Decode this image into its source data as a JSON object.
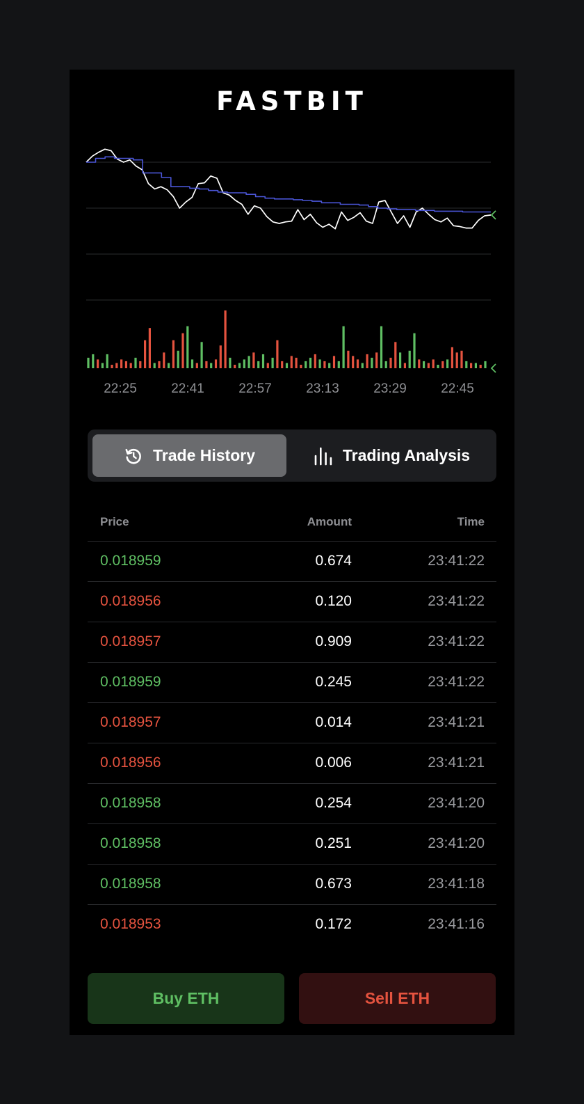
{
  "header": {
    "brand": "FASTBIT"
  },
  "chart_data": {
    "type": "line",
    "x_tick_labels": [
      "22:25",
      "22:41",
      "22:57",
      "23:13",
      "23:29",
      "22:45"
    ],
    "series": [
      {
        "values": [
          0.0191,
          0.01918,
          0.01923,
          0.01927,
          0.01925,
          0.01914,
          0.0191,
          0.01913,
          0.01905,
          0.019,
          0.01882,
          0.01875,
          0.01878,
          0.01874,
          0.01865,
          0.0185,
          0.01858,
          0.01864,
          0.01882,
          0.01883,
          0.01892,
          0.01889,
          0.0187,
          0.01867,
          0.0186,
          0.01855,
          0.01842,
          0.01853,
          0.0185,
          0.01839,
          0.01832,
          0.0183,
          0.01832,
          0.01833,
          0.01848,
          0.01835,
          0.01842,
          0.01831,
          0.01825,
          0.01829,
          0.01823,
          0.01845,
          0.01834,
          0.01838,
          0.01844,
          0.01833,
          0.0183,
          0.01858,
          0.0186,
          0.01845,
          0.0183,
          0.0184,
          0.01825,
          0.01845,
          0.0185,
          0.01842,
          0.01835,
          0.01832,
          0.01837,
          0.01827,
          0.01826,
          0.01824,
          0.01824,
          0.01834,
          0.0184,
          0.01841
        ]
      },
      {
        "values": [
          0.0191,
          0.01915,
          0.01917,
          0.01915,
          0.01915,
          0.01913,
          0.01896,
          0.01896,
          0.0189,
          0.01878,
          0.01878,
          0.01876,
          0.01875,
          0.01873,
          0.01871,
          0.0187,
          0.0187,
          0.01868,
          0.01865,
          0.01863,
          0.01862,
          0.01862,
          0.01861,
          0.0186,
          0.01859,
          0.01857,
          0.01857,
          0.01855,
          0.01855,
          0.01854,
          0.01852,
          0.0185,
          0.01849,
          0.01848,
          0.01848,
          0.01847,
          0.01847,
          0.01846,
          0.01846,
          0.01846,
          0.01845,
          0.01845,
          0.01845,
          0.01845
        ]
      }
    ],
    "volume": {
      "values": [
        6,
        8,
        5,
        3,
        8,
        2,
        3,
        5,
        4,
        3,
        6,
        4,
        16,
        23,
        3,
        4,
        9,
        3,
        16,
        10,
        20,
        24,
        5,
        3,
        15,
        4,
        3,
        5,
        13,
        33,
        6,
        2,
        3,
        5,
        7,
        9,
        4,
        8,
        3,
        6,
        16,
        4,
        3,
        7,
        6,
        2,
        4,
        6,
        8,
        5,
        4,
        3,
        7,
        4,
        24,
        10,
        7,
        5,
        3,
        8,
        6,
        9,
        24,
        4,
        6,
        15,
        9,
        3,
        10,
        20,
        5,
        4,
        3,
        5,
        2,
        4,
        5,
        12,
        9,
        10,
        4,
        3,
        3,
        2,
        4
      ],
      "colors": [
        "up",
        "up",
        "down",
        "up",
        "up",
        "down",
        "down",
        "down",
        "down",
        "down",
        "up",
        "down",
        "down",
        "down",
        "up",
        "down",
        "down",
        "up",
        "down",
        "up",
        "down",
        "up",
        "up",
        "down",
        "up",
        "down",
        "up",
        "down",
        "down",
        "down",
        "up",
        "down",
        "up",
        "up",
        "up",
        "down",
        "up",
        "up",
        "down",
        "up",
        "down",
        "down",
        "up",
        "down",
        "down",
        "down",
        "up",
        "up",
        "down",
        "up",
        "down",
        "up",
        "down",
        "up",
        "up",
        "down",
        "down",
        "down",
        "up",
        "down",
        "up",
        "down",
        "up",
        "up",
        "down",
        "down",
        "up",
        "down",
        "up",
        "up",
        "down",
        "up",
        "down",
        "down",
        "up",
        "down",
        "up",
        "down",
        "down",
        "down",
        "up",
        "down",
        "up",
        "down",
        "up"
      ]
    }
  },
  "tabs": {
    "trade_history": {
      "label": "Trade History",
      "icon": "history-icon",
      "active": true
    },
    "trading_analysis": {
      "label": "Trading Analysis",
      "icon": "bar-chart-icon",
      "active": false
    }
  },
  "trade_history": {
    "columns": {
      "price": "Price",
      "amount": "Amount",
      "time": "Time"
    },
    "rows": [
      {
        "price": "0.018959",
        "amount": "0.674",
        "time": "23:41:22",
        "side": "up"
      },
      {
        "price": "0.018956",
        "amount": "0.120",
        "time": "23:41:22",
        "side": "down"
      },
      {
        "price": "0.018957",
        "amount": "0.909",
        "time": "23:41:22",
        "side": "down"
      },
      {
        "price": "0.018959",
        "amount": "0.245",
        "time": "23:41:22",
        "side": "up"
      },
      {
        "price": "0.018957",
        "amount": "0.014",
        "time": "23:41:21",
        "side": "down"
      },
      {
        "price": "0.018956",
        "amount": "0.006",
        "time": "23:41:21",
        "side": "down"
      },
      {
        "price": "0.018958",
        "amount": "0.254",
        "time": "23:41:20",
        "side": "up"
      },
      {
        "price": "0.018958",
        "amount": "0.251",
        "time": "23:41:20",
        "side": "up"
      },
      {
        "price": "0.018958",
        "amount": "0.673",
        "time": "23:41:18",
        "side": "up"
      },
      {
        "price": "0.018953",
        "amount": "0.172",
        "time": "23:41:16",
        "side": "down"
      }
    ]
  },
  "actions": {
    "buy_label": "Buy ETH",
    "sell_label": "Sell ETH"
  },
  "colors": {
    "up": "#5fbf63",
    "down": "#e5533f",
    "price_line": "#ffffff",
    "average_line": "#4a55d6",
    "grid": "#2a2b2e"
  }
}
